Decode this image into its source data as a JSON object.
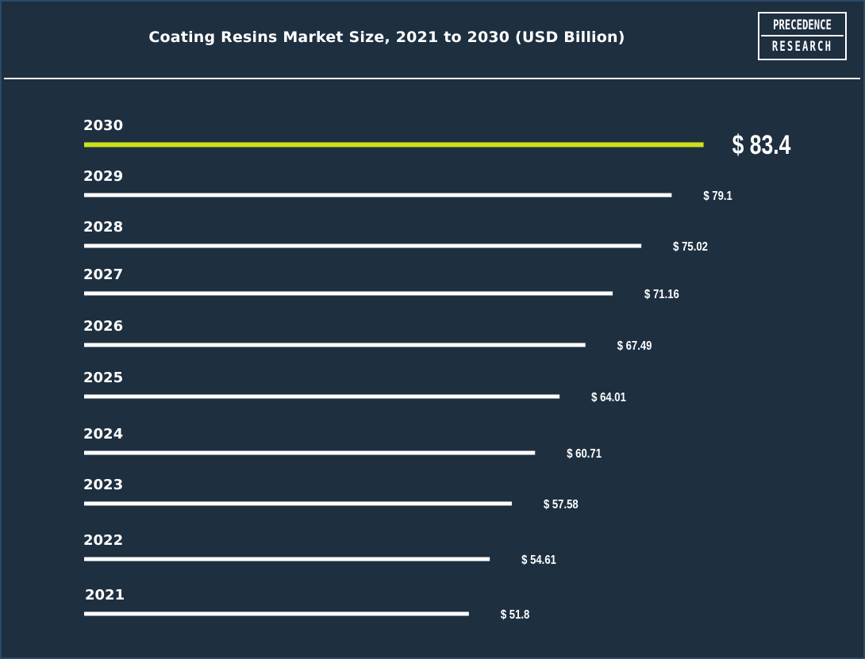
{
  "header": {
    "title": "Coating Resins Market Size, 2021 to 2030 (USD Billion)",
    "logo_line1": "PRECEDENCE",
    "logo_line2": "RESEARCH"
  },
  "colors": {
    "background": "#1e2f40",
    "bar": "#ffffff",
    "highlight": "#cde21b",
    "text": "#ffffff"
  },
  "chart_data": {
    "type": "bar",
    "orientation": "horizontal",
    "title": "Coating Resins Market Size, 2021 to 2030 (USD Billion)",
    "categories": [
      "2030",
      "2029",
      "2028",
      "2027",
      "2026",
      "2025",
      "2024",
      "2023",
      "2022",
      "2021"
    ],
    "values": [
      83.4,
      79.1,
      75.02,
      71.16,
      67.49,
      64.01,
      60.71,
      57.58,
      54.61,
      51.8
    ],
    "value_labels": [
      "$ 83.4",
      "$ 79.1",
      "$ 75.02",
      "$ 71.16",
      "$ 67.49",
      "$ 64.01",
      "$ 60.71",
      "$ 57.58",
      "$ 54.61",
      "$ 51.8"
    ],
    "highlight_category": "2030",
    "grid": false,
    "legend": "none"
  }
}
